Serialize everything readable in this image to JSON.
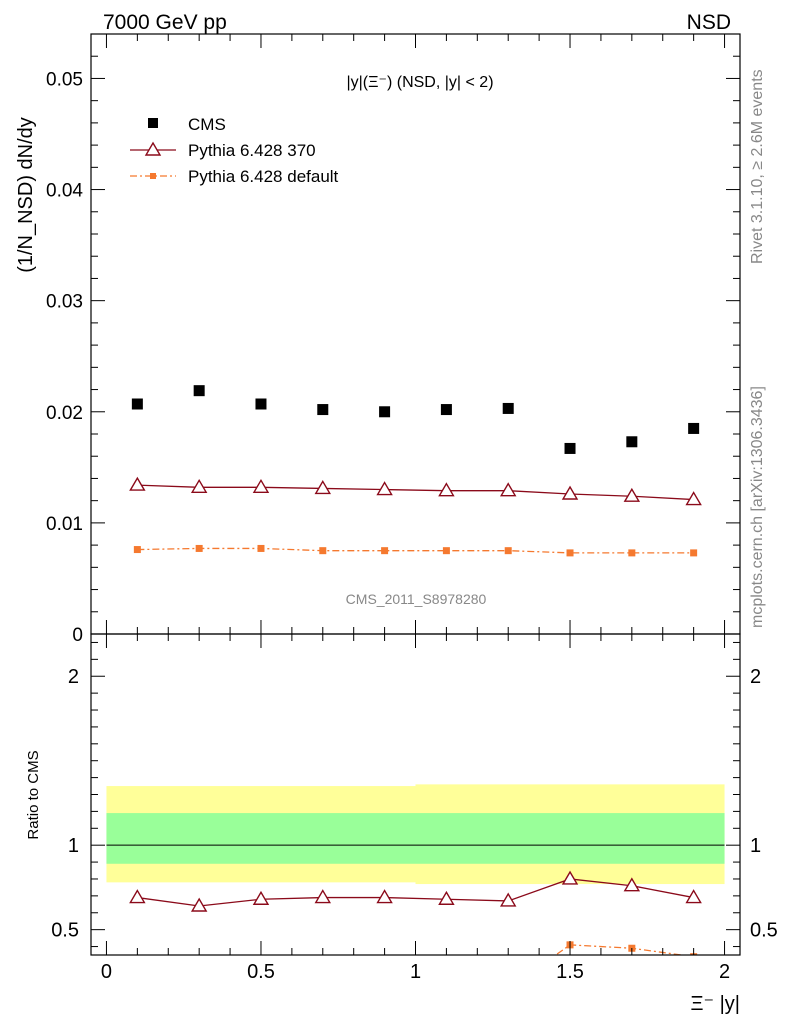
{
  "header": {
    "left": "7000 GeV pp",
    "right": "NSD"
  },
  "side_text": {
    "rivet": "Rivet 3.1.10, ≥ 2.6M events",
    "mcplots": "mcplots.cern.ch [arXiv:1306.3436]"
  },
  "colors": {
    "cms": "#000000",
    "pythia370": "#8b0a1a",
    "pythia_default": "#f5792f",
    "band_outer": "#ffff99",
    "band_inner": "#99ff99"
  },
  "chart_data": [
    {
      "type": "scatter",
      "panel": "main",
      "title": "|y|(Ξ⁻) (NSD, |y| < 2)",
      "ylabel": "(1/N_NSD) dN/dy",
      "watermark": "CMS_2011_S8978280",
      "xlim": [
        -0.05,
        2.05
      ],
      "ylim": [
        0,
        0.054
      ],
      "yticks": [
        0,
        0.01,
        0.02,
        0.03,
        0.04,
        0.05
      ],
      "ytick_labels": [
        "0",
        "0.01",
        "0.02",
        "0.03",
        "0.04",
        "0.05"
      ],
      "legend_position": "top-left",
      "x": [
        0.1,
        0.3,
        0.5,
        0.7,
        0.9,
        1.1,
        1.3,
        1.5,
        1.7,
        1.9
      ],
      "series": [
        {
          "name": "CMS",
          "marker": "square",
          "values": [
            0.0207,
            0.0219,
            0.0207,
            0.0202,
            0.02,
            0.0202,
            0.0203,
            0.0167,
            0.0173,
            0.0185
          ]
        },
        {
          "name": "Pythia 6.428 370",
          "marker": "triangle",
          "line": "solid",
          "values": [
            0.0134,
            0.0132,
            0.0132,
            0.0131,
            0.013,
            0.0129,
            0.0129,
            0.0126,
            0.0124,
            0.0121
          ]
        },
        {
          "name": "Pythia 6.428 default",
          "marker": "small-square",
          "line": "dashdot",
          "values": [
            0.0076,
            0.0077,
            0.0077,
            0.0075,
            0.0075,
            0.0075,
            0.0075,
            0.0073,
            0.0073,
            0.0073
          ]
        }
      ]
    },
    {
      "type": "line",
      "panel": "ratio",
      "ylabel": "Ratio to CMS",
      "xlabel": "Ξ⁻ |y|",
      "xlim": [
        -0.05,
        2.05
      ],
      "ylim": [
        0.35,
        2.25
      ],
      "xticks": [
        0,
        0.5,
        1,
        1.5,
        2
      ],
      "xtick_labels": [
        "0",
        "0.5",
        "1",
        "1.5",
        "2"
      ],
      "yticks": [
        0.5,
        1,
        2
      ],
      "ytick_labels": [
        "0.5",
        "1",
        "2"
      ],
      "bands": {
        "edges": [
          0.0,
          1.0,
          2.0
        ],
        "outer_lo": [
          0.78,
          0.77
        ],
        "outer_hi": [
          1.35,
          1.36
        ],
        "inner_lo": [
          0.89,
          0.89
        ],
        "inner_hi": [
          1.19,
          1.19
        ]
      },
      "x": [
        0.1,
        0.3,
        0.5,
        0.7,
        0.9,
        1.1,
        1.3,
        1.5,
        1.7,
        1.9
      ],
      "series": [
        {
          "name": "Pythia 6.428 370",
          "marker": "triangle",
          "values": [
            0.69,
            0.64,
            0.68,
            0.69,
            0.69,
            0.68,
            0.67,
            0.8,
            0.76,
            0.69
          ]
        },
        {
          "name": "Pythia 6.428 default",
          "marker": "small-square",
          "values": [
            null,
            null,
            null,
            null,
            null,
            null,
            null,
            0.41,
            0.39,
            0.34
          ]
        }
      ]
    }
  ]
}
